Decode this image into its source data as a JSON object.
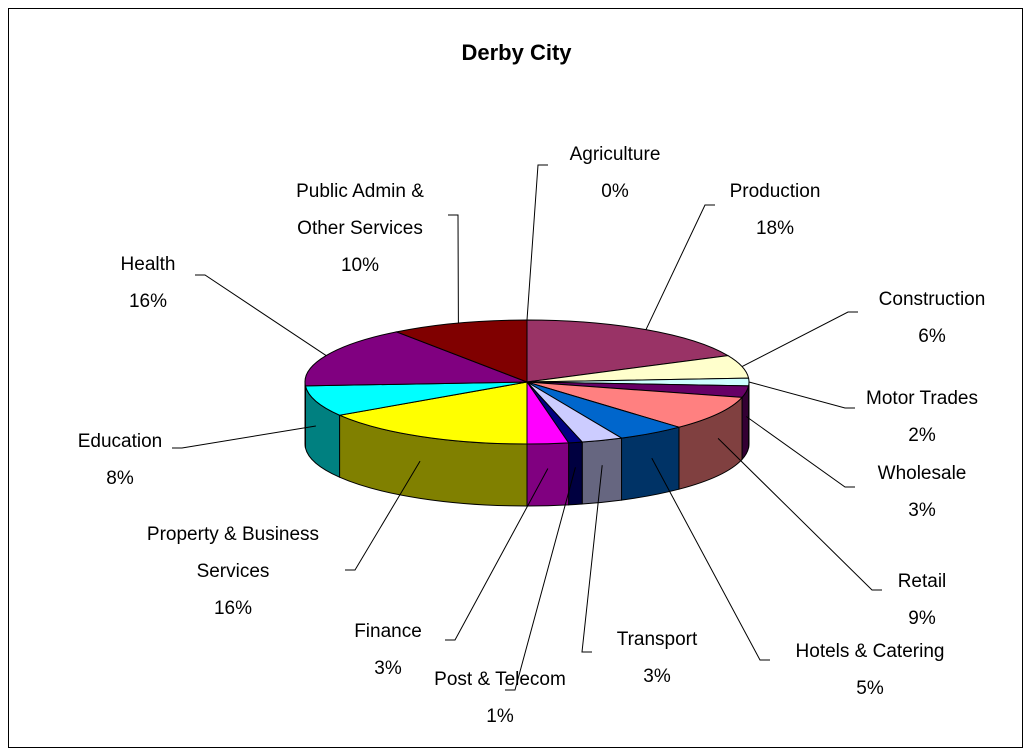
{
  "chart_data": {
    "type": "pie",
    "title": "Derby City",
    "categories": [
      "Agriculture",
      "Production",
      "Construction",
      "Motor Trades",
      "Wholesale",
      "Retail",
      "Hotels & Catering",
      "Transport",
      "Post & Telecom",
      "Finance",
      "Property & Business Services",
      "Education",
      "Health",
      "Public Admin & Other Services"
    ],
    "values": [
      0,
      18,
      6,
      2,
      3,
      9,
      5,
      3,
      1,
      3,
      16,
      8,
      16,
      10
    ],
    "value_labels": [
      "0%",
      "18%",
      "6%",
      "2%",
      "3%",
      "9%",
      "5%",
      "3%",
      "1%",
      "3%",
      "16%",
      "8%",
      "16%",
      "10%"
    ],
    "colors": [
      "#9999FF",
      "#993366",
      "#FFFFCC",
      "#CCFFFF",
      "#660066",
      "#FF8080",
      "#0066CC",
      "#CCCCFF",
      "#000080",
      "#FF00FF",
      "#FFFF00",
      "#00FFFF",
      "#800080",
      "#800000"
    ],
    "three_d": true
  }
}
